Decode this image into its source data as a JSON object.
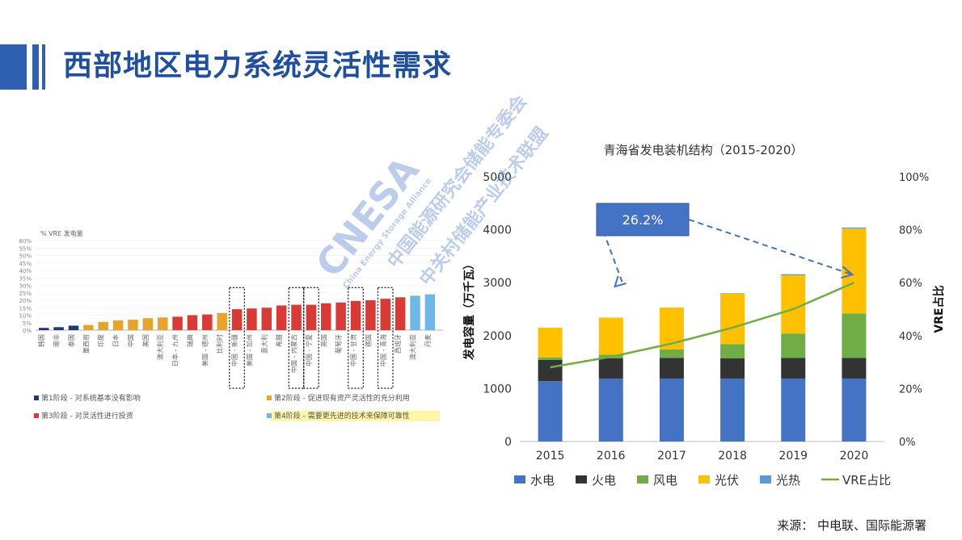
{
  "slide": {
    "title": "西部地区电力系统灵活性需求",
    "source": "来源：  中电联、国际能源署"
  },
  "watermark": {
    "logo": "CNESA",
    "org_cn_1": "中国能源研究会储能专委会",
    "org_cn_2": "中关村储能产业技术联盟",
    "org_en": "China Energy Storage Alliance"
  },
  "chart_data": [
    {
      "type": "bar",
      "ylabel": "% VRE 发电量",
      "ylim": [
        0,
        60
      ],
      "yticks": [
        "0%",
        "5%",
        "10%",
        "15%",
        "20%",
        "25%",
        "30%",
        "35%",
        "40%",
        "45%",
        "50%",
        "55%",
        "60%"
      ],
      "categories": [
        "韩国",
        "南非",
        "泰国",
        "墨西哥",
        "印度",
        "日本",
        "中国",
        "美国",
        "澳大利亚",
        "日本 - 九州",
        "瑞典",
        "美国 - 德州",
        "比利时",
        "中国 - 新疆",
        "美国 - 加州",
        "意大利",
        "希腊",
        "中国 - 内蒙古",
        "中国 - 宁夏",
        "英国",
        "葡萄牙",
        "中国 - 甘肃",
        "德国",
        "中国 - 青海",
        "西班牙",
        "澳大利亚",
        "丹麦"
      ],
      "values": [
        1.5,
        2,
        3,
        3.5,
        5.5,
        6.5,
        7,
        8,
        8.5,
        9,
        10,
        10.5,
        11.5,
        14,
        14.5,
        15,
        16.5,
        17,
        17,
        18,
        18.5,
        19.5,
        20,
        21,
        22,
        23,
        24
      ],
      "phase": [
        1,
        1,
        1,
        2,
        2,
        2,
        2,
        2,
        2,
        3,
        3,
        3,
        2,
        3,
        3,
        3,
        3,
        3,
        3,
        3,
        3,
        3,
        3,
        3,
        3,
        4,
        4
      ],
      "highlighted": [
        "中国 - 新疆",
        "中国 - 内蒙古",
        "中国 - 宁夏",
        "中国 - 甘肃",
        "中国 - 青海"
      ],
      "legend": [
        {
          "label": "第1阶段 - 对系统基本没有影响",
          "color": "#1f3a6e"
        },
        {
          "label": "第2阶段 - 促进现有资产灵活性的充分利用",
          "color": "#e6a42b"
        },
        {
          "label": "第3阶段 - 对灵活性进行投资",
          "color": "#d93a35"
        },
        {
          "label": "第4阶段 - 需要更先进的技术来保障可靠性",
          "color": "#6fb7e6"
        }
      ]
    },
    {
      "type": "bar",
      "stacked": true,
      "title": "青海省发电装机结构（2015-2020）",
      "ylabel": "发电容量（万千瓦）",
      "y2label": "VRE占比",
      "ylim": [
        0,
        5000
      ],
      "y2lim": [
        0,
        100
      ],
      "yticks": [
        "0",
        "1000",
        "2000",
        "3000",
        "4000",
        "5000"
      ],
      "y2ticks": [
        "0%",
        "20%",
        "40%",
        "60%",
        "80%",
        "100%"
      ],
      "categories": [
        "2015",
        "2016",
        "2017",
        "2018",
        "2019",
        "2020"
      ],
      "series": [
        {
          "name": "水电",
          "color": "#4472c4",
          "values": [
            1140,
            1190,
            1190,
            1190,
            1190,
            1190
          ]
        },
        {
          "name": "火电",
          "color": "#333333",
          "values": [
            400,
            380,
            390,
            380,
            390,
            390
          ]
        },
        {
          "name": "风电",
          "color": "#70ad47",
          "values": [
            50,
            70,
            160,
            270,
            460,
            840
          ]
        },
        {
          "name": "光伏",
          "color": "#ffc000",
          "values": [
            560,
            700,
            790,
            950,
            1100,
            1600
          ]
        },
        {
          "name": "光热",
          "color": "#5b9bd5",
          "values": [
            0,
            0,
            0,
            10,
            20,
            20
          ]
        }
      ],
      "line": {
        "name": "VRE占比",
        "color": "#70ad47",
        "values": [
          28,
          32,
          37,
          43,
          50,
          60
        ]
      },
      "annotation": "26.2%",
      "grid": false,
      "legend_position": "bottom"
    }
  ]
}
